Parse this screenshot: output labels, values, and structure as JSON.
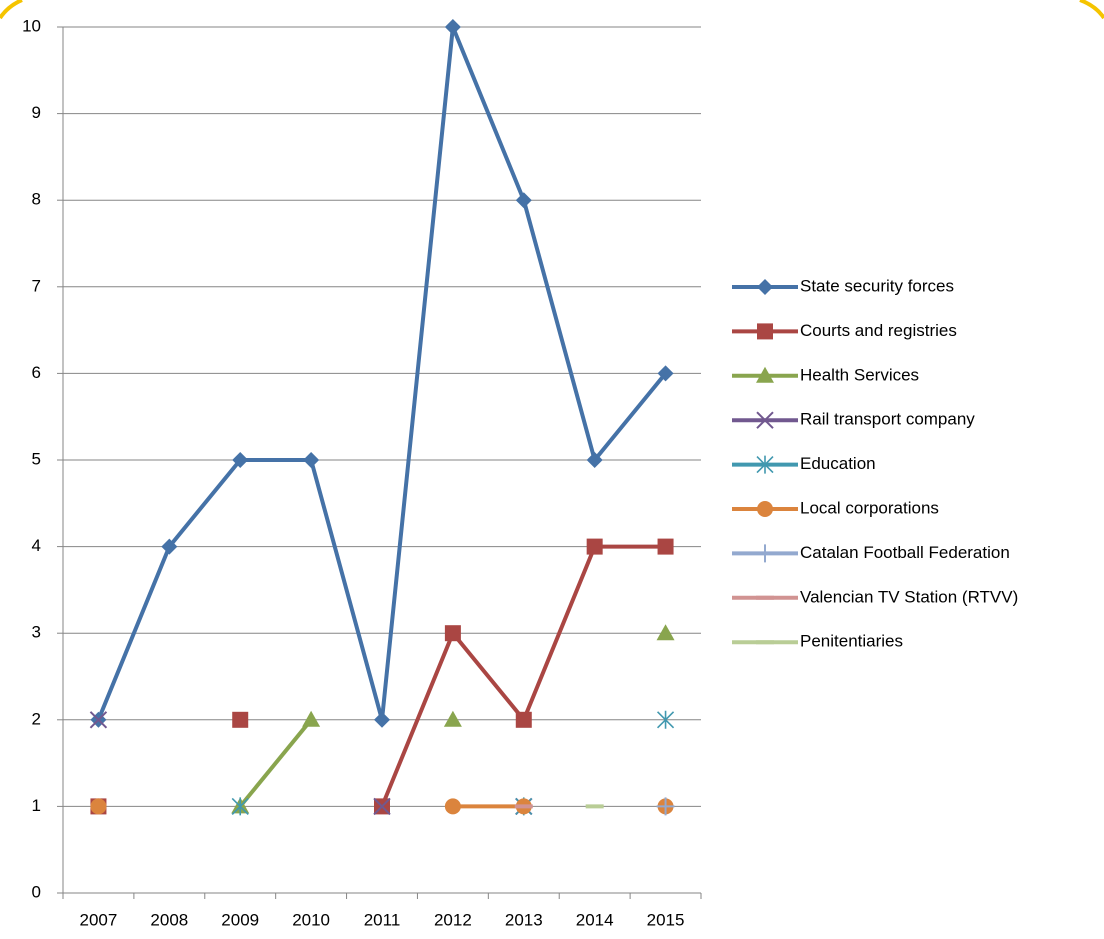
{
  "chart_data": {
    "type": "line",
    "categories": [
      "2007",
      "2008",
      "2009",
      "2010",
      "2011",
      "2012",
      "2013",
      "2014",
      "2015"
    ],
    "series": [
      {
        "name": "State security forces",
        "color": "#4572a7",
        "marker": "diamond",
        "values": [
          2,
          4,
          5,
          5,
          2,
          10,
          8,
          5,
          6
        ]
      },
      {
        "name": "Courts and registries",
        "color": "#aa4643",
        "marker": "square",
        "values": [
          1,
          null,
          2,
          null,
          1,
          3,
          2,
          4,
          4
        ]
      },
      {
        "name": "Health Services",
        "color": "#89a54e",
        "marker": "triangle",
        "values": [
          null,
          null,
          1,
          2,
          null,
          2,
          null,
          null,
          3
        ]
      },
      {
        "name": "Rail transport company",
        "color": "#71588f",
        "marker": "x",
        "values": [
          2,
          null,
          null,
          null,
          1,
          null,
          1,
          null,
          null
        ]
      },
      {
        "name": "Education",
        "color": "#4198af",
        "marker": "star",
        "values": [
          null,
          null,
          1,
          null,
          null,
          null,
          1,
          null,
          2
        ]
      },
      {
        "name": "Local corporations",
        "color": "#db843d",
        "marker": "circle",
        "values": [
          1,
          null,
          null,
          null,
          null,
          1,
          1,
          null,
          1
        ]
      },
      {
        "name": "Catalan Football Federation",
        "color": "#93a9cf",
        "marker": "plus",
        "values": [
          null,
          null,
          null,
          null,
          null,
          null,
          null,
          null,
          1
        ]
      },
      {
        "name": "Valencian TV Station (RTVV)",
        "color": "#d19392",
        "marker": "dash",
        "values": [
          null,
          null,
          null,
          null,
          null,
          null,
          1,
          null,
          null
        ]
      },
      {
        "name": "Penitentiaries",
        "color": "#b9cd96",
        "marker": "dash",
        "values": [
          null,
          null,
          null,
          null,
          null,
          null,
          null,
          1,
          null
        ]
      }
    ],
    "ylim": [
      0,
      10
    ],
    "yticks": [
      0,
      1,
      2,
      3,
      4,
      5,
      6,
      7,
      8,
      9,
      10
    ],
    "grid": true,
    "legend": "right"
  }
}
